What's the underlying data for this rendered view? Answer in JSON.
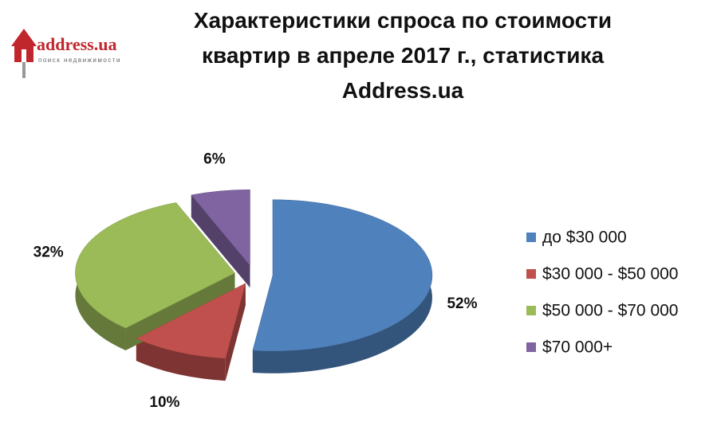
{
  "logo": {
    "name": "address.ua",
    "tagline": "поиск недвижимости"
  },
  "chart_data": {
    "type": "pie",
    "title": "Характеристики спроса по стоимости квартир в апреле 2017 г., статистика Address.ua",
    "categories": [
      "до $30 000",
      "$30 000 - $50 000",
      "$50 000 - $70 000",
      "$70 000+"
    ],
    "values": [
      52,
      10,
      32,
      6
    ],
    "value_labels": [
      "52%",
      "10%",
      "32%",
      "6%"
    ],
    "colors": [
      "#4f81bd",
      "#c0504d",
      "#9bbb59",
      "#8064a2"
    ],
    "legend": "right"
  }
}
